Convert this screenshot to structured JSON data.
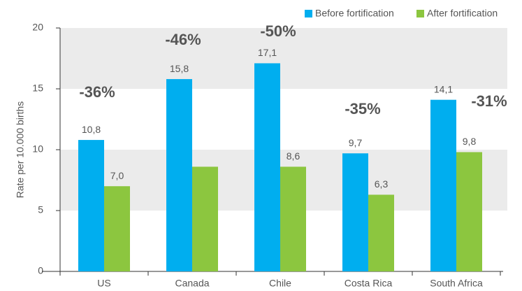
{
  "chart_data": {
    "type": "bar",
    "y_label": "Rate per 10.000 births",
    "categories": [
      "US",
      "Canada",
      "Chile",
      "Costa Rica",
      "South Africa"
    ],
    "series": [
      {
        "name": "Before fortification",
        "color": "#00aeef",
        "values": [
          10.8,
          15.8,
          17.1,
          9.7,
          14.1
        ],
        "value_labels": [
          "10,8",
          "15,8",
          "17,1",
          "9,7",
          "14,1"
        ]
      },
      {
        "name": "After fortification",
        "color": "#8cc63f",
        "values": [
          7.0,
          8.6,
          8.6,
          6.3,
          9.8
        ],
        "value_labels": [
          "7,0",
          null,
          "8,6",
          "6,3",
          "9,8"
        ]
      }
    ],
    "annotations": [
      "-36%",
      "-46%",
      "-50%",
      "-35%",
      "-31%"
    ],
    "ylim": [
      0,
      20
    ],
    "yticks": [
      0,
      5,
      10,
      15,
      20
    ],
    "bands": true,
    "legend": "top-right"
  }
}
